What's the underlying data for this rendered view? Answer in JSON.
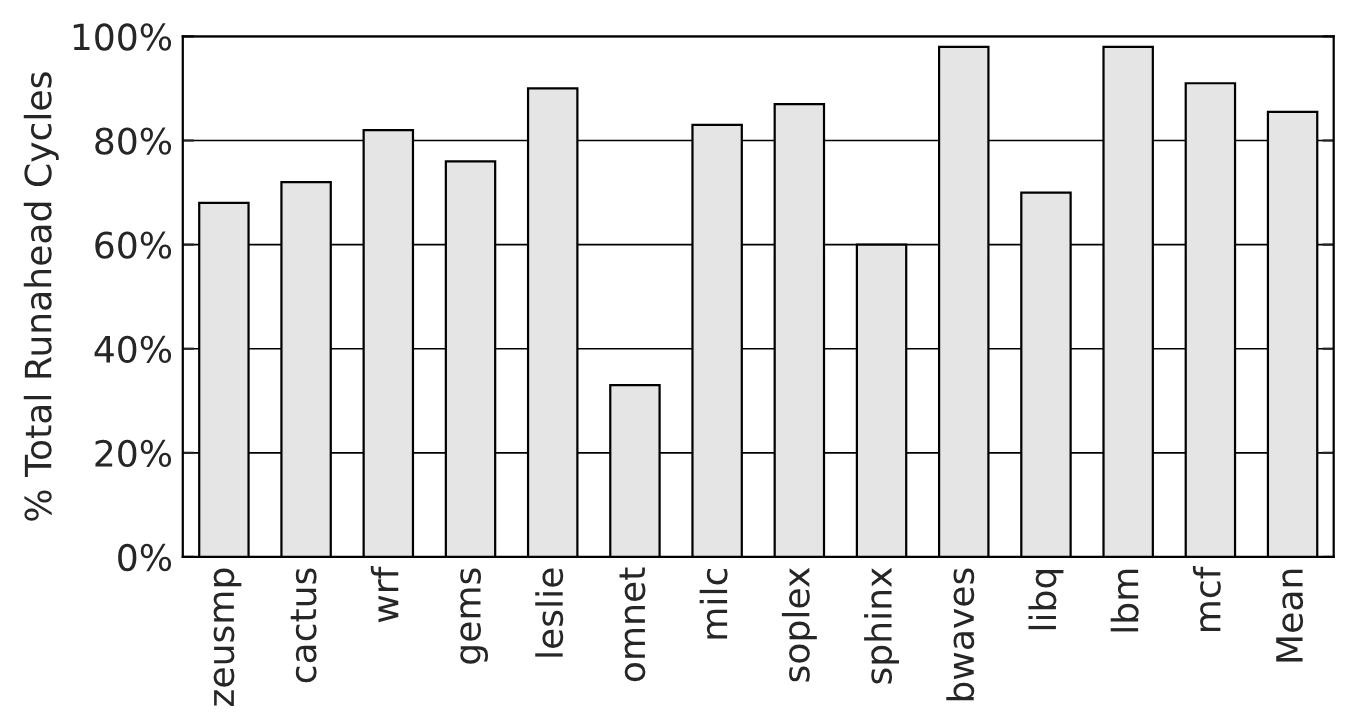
{
  "chart_data": {
    "type": "bar",
    "ylabel": "% Total Runahead Cycles",
    "categories": [
      "zeusmp",
      "cactus",
      "wrf",
      "gems",
      "leslie",
      "omnet",
      "milc",
      "soplex",
      "sphinx",
      "bwaves",
      "libq",
      "lbm",
      "mcf",
      "Mean"
    ],
    "values": [
      68,
      72,
      82,
      76,
      90,
      33,
      83,
      87,
      60,
      98,
      70,
      98,
      91,
      85.5
    ],
    "color": "#e5e5e5",
    "ylim": [
      0,
      100
    ],
    "yticks": [
      {
        "value": 0,
        "label": "0%"
      },
      {
        "value": 20,
        "label": "20%"
      },
      {
        "value": 40,
        "label": "40%"
      },
      {
        "value": 60,
        "label": "60%"
      },
      {
        "value": 80,
        "label": "80%"
      },
      {
        "value": 100,
        "label": "100%"
      }
    ],
    "grid": "y"
  }
}
